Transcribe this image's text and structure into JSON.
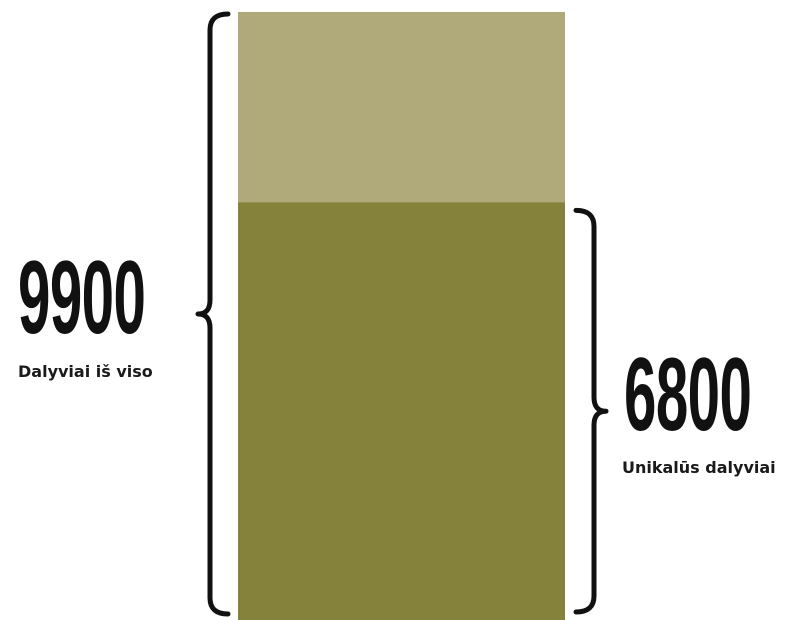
{
  "chart_data": {
    "type": "bar",
    "total": {
      "value": 9900,
      "value_label": "9900",
      "caption": "Dalyviai iš viso",
      "color": "#b0aa7b"
    },
    "unique": {
      "value": 6800,
      "value_label": "6800",
      "caption": "Unikalūs dalyviai",
      "color": "#85823c"
    },
    "bracket_color": "#111111"
  }
}
